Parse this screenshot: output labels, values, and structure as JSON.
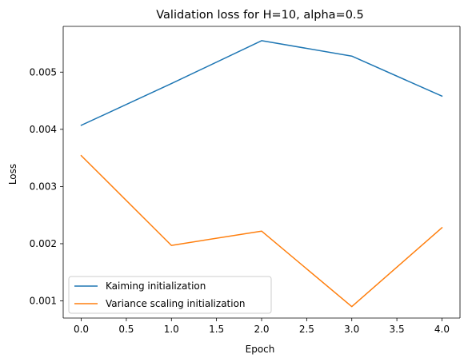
{
  "chart_data": {
    "type": "line",
    "title": "Validation loss for H=10, alpha=0.5",
    "xlabel": "Epoch",
    "ylabel": "Loss",
    "x": [
      0,
      1,
      2,
      3,
      4
    ],
    "xlim": [
      -0.2,
      4.2
    ],
    "ylim": [
      0.0007,
      0.0058
    ],
    "xticks": [
      0.0,
      0.5,
      1.0,
      1.5,
      2.0,
      2.5,
      3.0,
      3.5,
      4.0
    ],
    "xtick_labels": [
      "0.0",
      "0.5",
      "1.0",
      "1.5",
      "2.0",
      "2.5",
      "3.0",
      "3.5",
      "4.0"
    ],
    "yticks": [
      0.001,
      0.002,
      0.003,
      0.004,
      0.005
    ],
    "ytick_labels": [
      "0.001",
      "0.002",
      "0.003",
      "0.004",
      "0.005"
    ],
    "grid": false,
    "legend_position": "lower-left",
    "series": [
      {
        "name": "Kaiming initialization",
        "color": "#1f77b4",
        "values": [
          0.00407,
          0.0048,
          0.00555,
          0.00528,
          0.00458
        ]
      },
      {
        "name": "Variance scaling initialization",
        "color": "#ff7f0e",
        "values": [
          0.00354,
          0.00197,
          0.00222,
          0.0009,
          0.00228
        ]
      }
    ]
  }
}
